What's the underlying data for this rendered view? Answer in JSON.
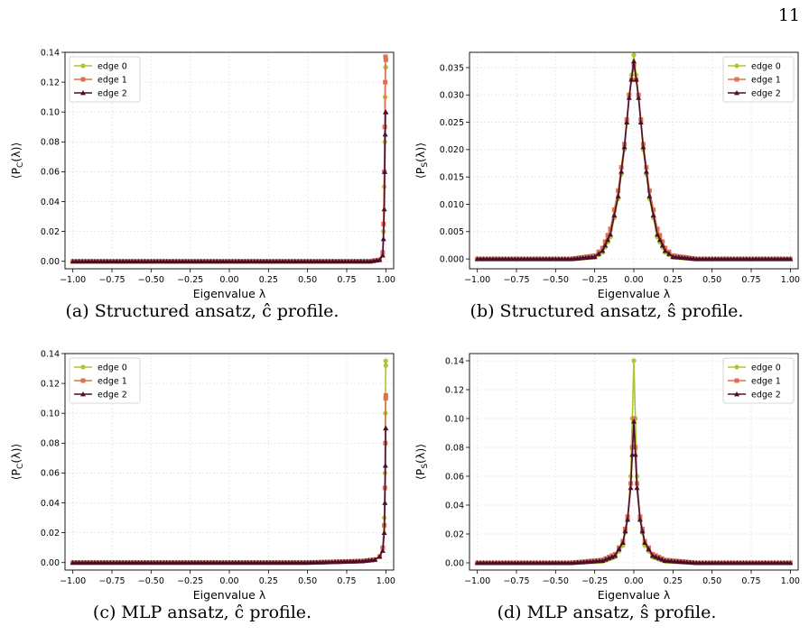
{
  "page": {
    "number": "11"
  },
  "panels": [
    {
      "caption": "(a) Structured ansatz, ĉ profile.",
      "ylabel": "⟨P_C(λ)⟩",
      "ylabel_main": "P",
      "ylabel_sub": "C",
      "legend_position": "upper-left"
    },
    {
      "caption": "(b) Structured ansatz, ŝ profile.",
      "ylabel": "⟨P_S(λ)⟩",
      "ylabel_main": "P",
      "ylabel_sub": "S",
      "legend_position": "upper-right"
    },
    {
      "caption": "(c) MLP ansatz, ĉ profile.",
      "ylabel": "⟨P_C(λ)⟩",
      "ylabel_main": "P",
      "ylabel_sub": "C",
      "legend_position": "upper-left"
    },
    {
      "caption": "(d) MLP ansatz, ŝ profile.",
      "ylabel": "⟨P_S(λ)⟩",
      "ylabel_main": "P",
      "ylabel_sub": "S",
      "legend_position": "upper-right"
    }
  ],
  "series_style": [
    {
      "name": "edge 0",
      "color": "#a8c930",
      "marker": "circle"
    },
    {
      "name": "edge 1",
      "color": "#e0704f",
      "marker": "square"
    },
    {
      "name": "edge 2",
      "color": "#4a0f2e",
      "marker": "triangle"
    }
  ],
  "chart_data": [
    {
      "type": "line",
      "xlabel": "Eigenvalue λ",
      "xlim": [
        -1.05,
        1.05
      ],
      "ylim": [
        -0.005,
        0.14
      ],
      "xticks": [
        "−1.00",
        "−0.75",
        "−0.50",
        "−0.25",
        "0.00",
        "0.25",
        "0.50",
        "0.75",
        "1.00"
      ],
      "xtick_values": [
        -1,
        -0.75,
        -0.5,
        -0.25,
        0,
        0.25,
        0.5,
        0.75,
        1
      ],
      "yticks": [
        "0.00",
        "0.02",
        "0.04",
        "0.06",
        "0.08",
        "0.10",
        "0.12",
        "0.14"
      ],
      "ytick_values": [
        0,
        0.02,
        0.04,
        0.06,
        0.08,
        0.1,
        0.12,
        0.14
      ],
      "grid": true,
      "series": [
        {
          "name": "edge 0",
          "x": [
            -1.0,
            0.5,
            0.9,
            0.96,
            0.98,
            0.985,
            0.99,
            0.993,
            0.996,
            0.998,
            1.0
          ],
          "y": [
            0.0,
            0.0,
            0.0,
            0.001,
            0.005,
            0.02,
            0.05,
            0.08,
            0.11,
            0.13,
            0.13
          ]
        },
        {
          "name": "edge 1",
          "x": [
            -1.0,
            0.5,
            0.9,
            0.96,
            0.98,
            0.985,
            0.99,
            0.993,
            0.996,
            0.998,
            1.0
          ],
          "y": [
            0.0,
            0.0,
            0.0,
            0.001,
            0.006,
            0.025,
            0.06,
            0.09,
            0.12,
            0.137,
            0.135
          ]
        },
        {
          "name": "edge 2",
          "x": [
            -1.0,
            0.5,
            0.9,
            0.96,
            0.98,
            0.985,
            0.99,
            0.993,
            0.996,
            0.998,
            1.0
          ],
          "y": [
            0.0,
            0.0,
            0.0,
            0.001,
            0.004,
            0.015,
            0.035,
            0.06,
            0.085,
            0.1,
            0.1
          ]
        }
      ]
    },
    {
      "type": "line",
      "xlabel": "Eigenvalue λ",
      "xlim": [
        -1.05,
        1.05
      ],
      "ylim": [
        -0.0018,
        0.0378
      ],
      "xticks": [
        "−1.00",
        "−0.75",
        "−0.50",
        "−0.25",
        "0.00",
        "0.25",
        "0.50",
        "0.75",
        "1.00"
      ],
      "xtick_values": [
        -1,
        -0.75,
        -0.5,
        -0.25,
        0,
        0.25,
        0.5,
        0.75,
        1
      ],
      "yticks": [
        "0.000",
        "0.005",
        "0.010",
        "0.015",
        "0.020",
        "0.025",
        "0.030",
        "0.035"
      ],
      "ytick_values": [
        0,
        0.005,
        0.01,
        0.015,
        0.02,
        0.025,
        0.03,
        0.035
      ],
      "grid": true,
      "series": [
        {
          "name": "edge 0",
          "x": [
            -1.0,
            -0.4,
            -0.25,
            -0.2,
            -0.15,
            -0.1,
            -0.06,
            -0.03,
            0.0,
            0.03,
            0.06,
            0.1,
            0.15,
            0.2,
            0.25,
            0.4,
            1.0
          ],
          "y": [
            0.0,
            0.0,
            0.0003,
            0.0012,
            0.004,
            0.011,
            0.02,
            0.03,
            0.0373,
            0.03,
            0.02,
            0.011,
            0.004,
            0.0012,
            0.0003,
            0.0,
            0.0
          ]
        },
        {
          "name": "edge 1",
          "x": [
            -1.0,
            -0.4,
            -0.25,
            -0.2,
            -0.15,
            -0.1,
            -0.06,
            -0.03,
            0.0,
            0.03,
            0.06,
            0.1,
            0.15,
            0.2,
            0.25,
            0.4,
            1.0
          ],
          "y": [
            0.0,
            0.0,
            0.0006,
            0.002,
            0.0055,
            0.0125,
            0.021,
            0.03,
            0.0355,
            0.03,
            0.021,
            0.0125,
            0.0055,
            0.002,
            0.0006,
            0.0,
            0.0
          ]
        },
        {
          "name": "edge 2",
          "x": [
            -1.0,
            -0.4,
            -0.25,
            -0.2,
            -0.15,
            -0.1,
            -0.06,
            -0.03,
            0.0,
            0.03,
            0.06,
            0.1,
            0.15,
            0.2,
            0.25,
            0.4,
            1.0
          ],
          "y": [
            0.0,
            0.0,
            0.0004,
            0.0015,
            0.0045,
            0.0115,
            0.0205,
            0.0295,
            0.0362,
            0.0295,
            0.0205,
            0.0115,
            0.0045,
            0.0015,
            0.0004,
            0.0,
            0.0
          ]
        }
      ]
    },
    {
      "type": "line",
      "xlabel": "Eigenvalue λ",
      "xlim": [
        -1.05,
        1.05
      ],
      "ylim": [
        -0.005,
        0.14
      ],
      "xticks": [
        "−1.00",
        "−0.75",
        "−0.50",
        "−0.25",
        "0.00",
        "0.25",
        "0.50",
        "0.75",
        "1.00"
      ],
      "xtick_values": [
        -1,
        -0.75,
        -0.5,
        -0.25,
        0,
        0.25,
        0.5,
        0.75,
        1
      ],
      "yticks": [
        "0.00",
        "0.02",
        "0.04",
        "0.06",
        "0.08",
        "0.10",
        "0.12",
        "0.14"
      ],
      "ytick_values": [
        0,
        0.02,
        0.04,
        0.06,
        0.08,
        0.1,
        0.12,
        0.14
      ],
      "grid": true,
      "series": [
        {
          "name": "edge 0",
          "x": [
            -1.0,
            0.5,
            0.85,
            0.93,
            0.96,
            0.98,
            0.99,
            0.994,
            0.997,
            0.999,
            1.0
          ],
          "y": [
            0.0,
            0.0,
            0.001,
            0.002,
            0.004,
            0.01,
            0.03,
            0.06,
            0.1,
            0.135,
            0.132
          ]
        },
        {
          "name": "edge 1",
          "x": [
            -1.0,
            0.5,
            0.85,
            0.93,
            0.96,
            0.98,
            0.99,
            0.994,
            0.997,
            0.999,
            1.0
          ],
          "y": [
            0.0,
            0.0,
            0.001,
            0.002,
            0.004,
            0.01,
            0.025,
            0.05,
            0.08,
            0.11,
            0.112
          ]
        },
        {
          "name": "edge 2",
          "x": [
            -1.0,
            0.5,
            0.85,
            0.93,
            0.96,
            0.98,
            0.99,
            0.994,
            0.997,
            0.999,
            1.0
          ],
          "y": [
            0.0,
            0.0,
            0.001,
            0.002,
            0.004,
            0.008,
            0.02,
            0.04,
            0.065,
            0.09,
            0.09
          ]
        }
      ]
    },
    {
      "type": "line",
      "xlabel": "Eigenvalue λ",
      "xlim": [
        -1.05,
        1.05
      ],
      "ylim": [
        -0.005,
        0.145
      ],
      "xticks": [
        "−1.00",
        "−0.75",
        "−0.50",
        "−0.25",
        "0.00",
        "0.25",
        "0.50",
        "0.75",
        "1.00"
      ],
      "xtick_values": [
        -1,
        -0.75,
        -0.5,
        -0.25,
        0,
        0.25,
        0.5,
        0.75,
        1
      ],
      "yticks": [
        "0.00",
        "0.02",
        "0.04",
        "0.06",
        "0.08",
        "0.10",
        "0.12",
        "0.14"
      ],
      "ytick_values": [
        0,
        0.02,
        0.04,
        0.06,
        0.08,
        0.1,
        0.12,
        0.14
      ],
      "grid": true,
      "series": [
        {
          "name": "edge 0",
          "x": [
            -1.0,
            -0.4,
            -0.2,
            -0.12,
            -0.07,
            -0.04,
            -0.02,
            -0.01,
            0.0,
            0.01,
            0.02,
            0.04,
            0.07,
            0.12,
            0.2,
            0.4,
            1.0
          ],
          "y": [
            0.0,
            0.0,
            0.001,
            0.004,
            0.012,
            0.03,
            0.06,
            0.1,
            0.14,
            0.1,
            0.06,
            0.03,
            0.012,
            0.004,
            0.001,
            0.0,
            0.0
          ]
        },
        {
          "name": "edge 1",
          "x": [
            -1.0,
            -0.4,
            -0.2,
            -0.12,
            -0.07,
            -0.04,
            -0.02,
            -0.01,
            0.0,
            0.01,
            0.02,
            0.04,
            0.07,
            0.12,
            0.2,
            0.4,
            1.0
          ],
          "y": [
            0.0,
            0.0,
            0.002,
            0.006,
            0.015,
            0.032,
            0.055,
            0.08,
            0.1,
            0.08,
            0.055,
            0.032,
            0.015,
            0.006,
            0.002,
            0.0,
            0.0
          ]
        },
        {
          "name": "edge 2",
          "x": [
            -1.0,
            -0.4,
            -0.2,
            -0.12,
            -0.07,
            -0.04,
            -0.02,
            -0.01,
            0.0,
            0.01,
            0.02,
            0.04,
            0.07,
            0.12,
            0.2,
            0.4,
            1.0
          ],
          "y": [
            0.0,
            0.0,
            0.0015,
            0.005,
            0.014,
            0.03,
            0.052,
            0.075,
            0.098,
            0.075,
            0.052,
            0.03,
            0.014,
            0.005,
            0.0015,
            0.0,
            0.0
          ]
        }
      ]
    }
  ]
}
